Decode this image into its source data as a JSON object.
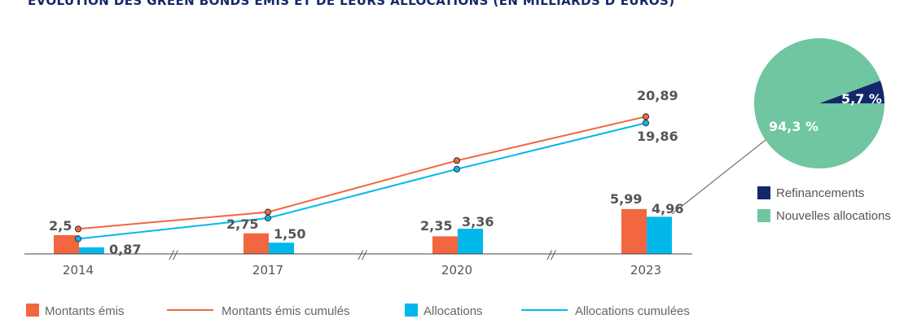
{
  "title": "ÉVOLUTION DES GREEN BONDS ÉMIS ET DE LEURS ALLOCATIONS (EN MILLIARDS D’EUROS)",
  "colors": {
    "emis": "#f26640",
    "allocations": "#00b9ea",
    "refinancements": "#12286b",
    "nouvelles": "#6fc6a0",
    "axis": "#444444",
    "label": "#555555",
    "legend_text": "#666666"
  },
  "chart_data": [
    {
      "type": "bar",
      "title": "",
      "categories": [
        "2014",
        "2017",
        "2020",
        "2023"
      ],
      "series": [
        {
          "name": "Montants émis",
          "kind": "bar",
          "values": [
            2.5,
            2.75,
            2.35,
            5.99
          ],
          "labels": [
            "2,5",
            "2,75",
            "2,35",
            "5,99"
          ]
        },
        {
          "name": "Allocations",
          "kind": "bar",
          "values": [
            0.87,
            1.5,
            3.36,
            4.96
          ],
          "labels": [
            "0,87",
            "1,50",
            "3,36",
            "4,96"
          ]
        },
        {
          "name": "Montants émis cumulés",
          "kind": "line",
          "values": [
            2.5,
            5.25,
            13.7,
            20.89
          ],
          "labels": [
            "",
            "",
            "",
            "20,89"
          ]
        },
        {
          "name": "Allocations cumulées",
          "kind": "line",
          "values": [
            0.87,
            4.27,
            12.3,
            19.86
          ],
          "labels": [
            "",
            "",
            "",
            "19,86"
          ]
        }
      ],
      "axis_break_marks": "//",
      "grid": false,
      "legend": "bottom"
    },
    {
      "type": "pie",
      "title": "",
      "slices": [
        {
          "name": "Refinancements",
          "value": 5.7,
          "label": "5,7 %"
        },
        {
          "name": "Nouvelles allocations",
          "value": 94.3,
          "label": "94,3 %"
        }
      ],
      "legend": "right"
    }
  ]
}
